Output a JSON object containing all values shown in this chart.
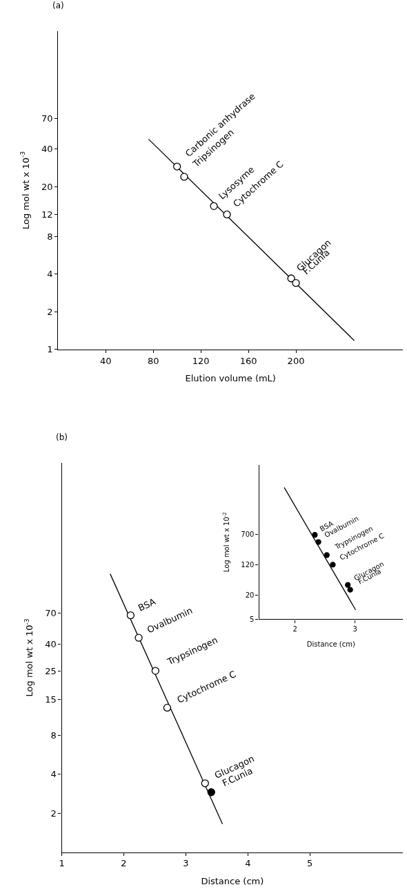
{
  "chart_data": [
    {
      "type": "scatter",
      "title": "(a)",
      "xlabel": "Elution volume (mL)",
      "ylabel": "Log mol wt x 10$^{-3}$",
      "log": "y",
      "xlim": [
        0,
        290
      ],
      "ylim": [
        1,
        350
      ],
      "xticks": [
        40,
        80,
        120,
        160,
        200
      ],
      "yticks": [
        1,
        2,
        4,
        8,
        12,
        20,
        40,
        70
      ],
      "series": [
        {
          "type": "line",
          "color": "#000000",
          "x": [
            76,
            249
          ],
          "values": [
            48,
            1.18
          ]
        },
        {
          "marker": "circle",
          "color": "#ffffff",
          "x": [
            100,
            106,
            131,
            142,
            196,
            200
          ],
          "values": [
            29,
            24,
            14,
            12,
            3.7,
            3.4
          ]
        }
      ],
      "annotations": [
        {
          "text": "Carbonic anhydrase",
          "x": 100,
          "y": 29
        },
        {
          "text": "Tripsinogen",
          "x": 106,
          "y": 24
        },
        {
          "text": "Lysosyme",
          "x": 131,
          "y": 14
        },
        {
          "text": "Cytochrome C",
          "x": 142,
          "y": 12
        },
        {
          "text": "Glucagon",
          "x": 196,
          "y": 3.7
        },
        {
          "text": "F.Cunia",
          "x": 200,
          "y": 3.4
        }
      ]
    },
    {
      "type": "scatter",
      "title": "(b)",
      "xlabel": "Distance (cm)",
      "ylabel": "Log mol wt x 10$^{-3}$",
      "log": "y",
      "xlim": [
        1,
        6.5
      ],
      "ylim": [
        1,
        1000
      ],
      "xticks": [
        1,
        2,
        3,
        4,
        5
      ],
      "yticks": [
        2,
        4,
        8,
        15,
        25,
        40,
        70
      ],
      "series": [
        {
          "type": "line",
          "color": "#000000",
          "x": [
            1.78,
            3.59
          ],
          "values": [
            140,
            1.65
          ]
        },
        {
          "marker": "circle",
          "color": "#ffffff",
          "x": [
            2.11,
            2.24,
            2.51,
            2.7,
            3.31
          ],
          "values": [
            67,
            45,
            25,
            13,
            3.4
          ]
        },
        {
          "marker": "circle",
          "color": "#000000",
          "x": [
            3.41
          ],
          "values": [
            2.9
          ]
        }
      ],
      "annotations": [
        {
          "text": "BSA",
          "x": 2.11,
          "y": 67
        },
        {
          "text": "Ovalbumin",
          "x": 2.24,
          "y": 45
        },
        {
          "text": "Trypsinogen",
          "x": 2.51,
          "y": 25
        },
        {
          "text": "Cytochrome C",
          "x": 2.7,
          "y": 13
        },
        {
          "text": "Glucagon",
          "x": 3.31,
          "y": 3.4
        },
        {
          "text": "F.Cunia",
          "x": 3.41,
          "y": 2.9
        }
      ]
    },
    {
      "type": "scatter",
      "xlabel": "Distance (cm)",
      "ylabel": "Log mol wt x 10$^{-2}$",
      "log": "y",
      "xlim": [
        1.4,
        3.8
      ],
      "ylim": [
        5,
        40000
      ],
      "xticks": [
        2,
        3
      ],
      "yticks": [
        5,
        20,
        120,
        700
      ],
      "series": [
        {
          "type": "line",
          "color": "#000000",
          "x": [
            1.82,
            3.01
          ],
          "values": [
            10700,
            8.7
          ]
        },
        {
          "marker": "circle",
          "color": "#000000",
          "x": [
            2.33,
            2.39,
            2.53,
            2.63,
            2.88,
            2.92
          ],
          "values": [
            680,
            450,
            210,
            120,
            37,
            28
          ]
        }
      ],
      "annotations": [
        {
          "text": "BSA",
          "x": 2.33,
          "y": 680
        },
        {
          "text": "Ovalbumin",
          "x": 2.39,
          "y": 450
        },
        {
          "text": "Trypsinogen",
          "x": 2.53,
          "y": 210
        },
        {
          "text": "Cytochrome C",
          "x": 2.63,
          "y": 120
        },
        {
          "text": "Glucagon",
          "x": 2.88,
          "y": 37
        },
        {
          "text": "F.Cunia",
          "x": 2.92,
          "y": 28
        }
      ]
    }
  ]
}
